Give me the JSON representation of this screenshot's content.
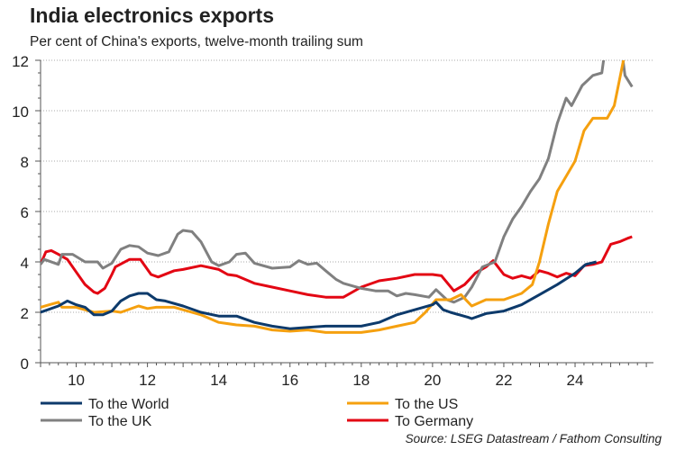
{
  "chart_data": {
    "type": "line",
    "title": "India electronics exports",
    "subtitle": "Per cent of China's exports, twelve-month trailing sum",
    "xlabel": "",
    "ylabel": "",
    "xlim": [
      9,
      26.2
    ],
    "ylim": [
      0,
      12
    ],
    "xticks": [
      10,
      12,
      14,
      16,
      18,
      20,
      22,
      24
    ],
    "yticks": [
      0,
      2,
      4,
      6,
      8,
      10,
      12
    ],
    "grid": "horizontal dotted",
    "legend_position": "bottom",
    "source": "Source: LSEG Datastream / Fathom Consulting",
    "series": [
      {
        "name": "To the World",
        "color": "#0d3a6b",
        "x": [
          9,
          9.5,
          9.75,
          10,
          10.25,
          10.5,
          10.75,
          11,
          11.25,
          11.5,
          11.75,
          12,
          12.25,
          12.5,
          13,
          13.5,
          14,
          14.5,
          15,
          15.5,
          16,
          16.5,
          17,
          17.5,
          18,
          18.5,
          19,
          19.5,
          20,
          20.1,
          20.3,
          20.5,
          21,
          21.1,
          21.5,
          22,
          22.5,
          23,
          23.5,
          24,
          24.3,
          24.6
        ],
        "y": [
          2.0,
          2.25,
          2.45,
          2.3,
          2.2,
          1.9,
          1.9,
          2.05,
          2.45,
          2.65,
          2.75,
          2.75,
          2.5,
          2.45,
          2.25,
          2.0,
          1.85,
          1.85,
          1.6,
          1.45,
          1.35,
          1.4,
          1.45,
          1.45,
          1.45,
          1.6,
          1.9,
          2.1,
          2.3,
          2.4,
          2.1,
          2.0,
          1.8,
          1.75,
          1.95,
          2.05,
          2.3,
          2.7,
          3.1,
          3.55,
          3.9,
          4.0
        ]
      },
      {
        "name": "To the US",
        "color": "#f5a00f",
        "x": [
          9,
          9.25,
          9.5,
          9.6,
          10,
          10.5,
          11,
          11.25,
          11.75,
          12,
          12.25,
          12.75,
          13,
          13.5,
          14,
          14.5,
          15,
          15.5,
          16,
          16.5,
          17,
          17.5,
          18,
          18.5,
          19,
          19.5,
          19.8,
          20.1,
          20.5,
          20.8,
          21,
          21.1,
          21.5,
          22,
          22.5,
          22.8,
          23,
          23.25,
          23.5,
          24,
          24.25,
          24.5,
          24.9,
          25.1,
          25.4
        ],
        "y": [
          2.2,
          2.3,
          2.4,
          2.2,
          2.2,
          2.0,
          2.05,
          2.0,
          2.25,
          2.15,
          2.2,
          2.2,
          2.1,
          1.9,
          1.6,
          1.5,
          1.45,
          1.3,
          1.25,
          1.3,
          1.2,
          1.2,
          1.2,
          1.3,
          1.45,
          1.6,
          2.0,
          2.5,
          2.5,
          2.7,
          2.4,
          2.25,
          2.5,
          2.5,
          2.75,
          3.1,
          4.0,
          5.5,
          6.8,
          8.0,
          9.2,
          9.7,
          9.7,
          10.2,
          12.3
        ]
      },
      {
        "name": "To the UK",
        "color": "#808080",
        "x": [
          9,
          9.1,
          9.5,
          9.6,
          9.9,
          10.25,
          10.6,
          10.75,
          11,
          11.25,
          11.5,
          11.75,
          12,
          12.3,
          12.6,
          12.85,
          13,
          13.25,
          13.5,
          13.8,
          14,
          14.3,
          14.5,
          14.75,
          15,
          15.5,
          16,
          16.25,
          16.5,
          16.75,
          17,
          17.3,
          17.5,
          18,
          18.4,
          18.75,
          19,
          19.25,
          19.5,
          19.9,
          20.1,
          20.4,
          20.6,
          20.9,
          21.1,
          21.4,
          21.75,
          22,
          22.25,
          22.5,
          22.75,
          23,
          23.25,
          23.5,
          23.75,
          23.9,
          24.2,
          24.5,
          24.75,
          24.85,
          25.3,
          25.4,
          25.6
        ],
        "y": [
          3.9,
          4.1,
          3.9,
          4.3,
          4.3,
          4.0,
          4.0,
          3.75,
          3.95,
          4.5,
          4.65,
          4.6,
          4.35,
          4.25,
          4.4,
          5.1,
          5.25,
          5.2,
          4.8,
          4.0,
          3.85,
          4.0,
          4.3,
          4.35,
          3.95,
          3.75,
          3.8,
          4.05,
          3.9,
          3.95,
          3.65,
          3.3,
          3.15,
          2.95,
          2.85,
          2.85,
          2.65,
          2.75,
          2.7,
          2.6,
          2.9,
          2.5,
          2.4,
          2.6,
          3.0,
          3.8,
          4.0,
          5.0,
          5.7,
          6.2,
          6.8,
          7.3,
          8.1,
          9.5,
          10.5,
          10.2,
          11.0,
          11.4,
          11.5,
          12.5,
          12.5,
          11.4,
          10.95
        ]
      },
      {
        "name": "To Germany",
        "color": "#e30613",
        "x": [
          9,
          9.15,
          9.3,
          9.5,
          9.75,
          10,
          10.25,
          10.5,
          10.6,
          10.8,
          11,
          11.1,
          11.5,
          11.8,
          12.1,
          12.3,
          12.75,
          13,
          13.5,
          14,
          14.25,
          14.5,
          15,
          15.5,
          16,
          16.5,
          17,
          17.5,
          18,
          18.5,
          19,
          19.5,
          20,
          20.25,
          20.6,
          20.9,
          21.2,
          21.5,
          21.7,
          22,
          22.25,
          22.5,
          22.75,
          23,
          23.25,
          23.5,
          23.75,
          24,
          24.25,
          24.5,
          24.75,
          25,
          25.25,
          25.5,
          25.6
        ],
        "y": [
          3.9,
          4.4,
          4.45,
          4.3,
          4.1,
          3.6,
          3.1,
          2.8,
          2.75,
          2.95,
          3.5,
          3.8,
          4.1,
          4.1,
          3.5,
          3.4,
          3.65,
          3.7,
          3.85,
          3.7,
          3.5,
          3.45,
          3.15,
          3.0,
          2.85,
          2.7,
          2.6,
          2.6,
          3.0,
          3.25,
          3.35,
          3.5,
          3.5,
          3.45,
          2.85,
          3.1,
          3.55,
          3.8,
          4.05,
          3.5,
          3.35,
          3.45,
          3.35,
          3.65,
          3.55,
          3.4,
          3.55,
          3.45,
          3.85,
          3.9,
          4.0,
          4.7,
          4.8,
          4.95,
          5.0
        ]
      }
    ]
  }
}
